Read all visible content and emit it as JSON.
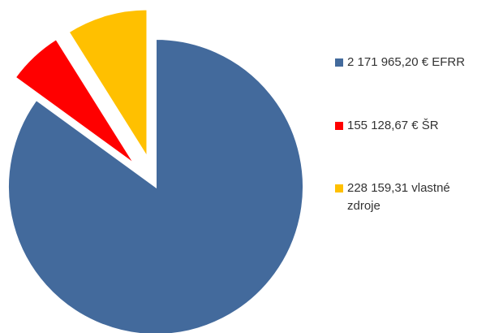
{
  "chart_data": {
    "type": "pie",
    "categories": [
      "2 171 965,20 € EFRR",
      "155 128,67 € ŠR",
      "228 159,31 vlastné zdroje"
    ],
    "values": [
      2171965.2,
      155128.67,
      228159.31
    ],
    "colors": [
      "#436a9c",
      "#ff0000",
      "#ffc000"
    ],
    "legend": "right"
  }
}
